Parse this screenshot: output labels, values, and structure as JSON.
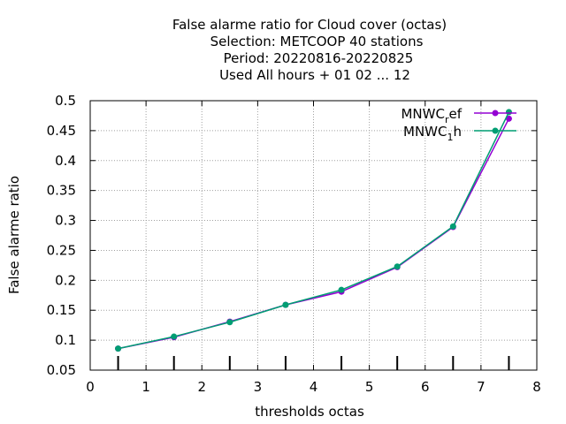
{
  "chart_data": {
    "type": "line",
    "title_lines": [
      "False alarme ratio  for Cloud cover (octas)",
      "Selection: METCOOP     40 stations",
      "Period: 20220816-20220825",
      "Used  All hours + 01 02 ... 12"
    ],
    "xlabel": "thresholds octas",
    "ylabel": "False alarme ratio",
    "xlim": [
      0,
      8
    ],
    "ylim": [
      0.05,
      0.5
    ],
    "xticks": [
      0,
      1,
      2,
      3,
      4,
      5,
      6,
      7,
      8
    ],
    "yticks": [
      0.05,
      0.1,
      0.15,
      0.2,
      0.25,
      0.3,
      0.35,
      0.4,
      0.45,
      0.5
    ],
    "grid": true,
    "legend_position": "top-right",
    "x": [
      0.5,
      1.5,
      2.5,
      3.5,
      4.5,
      5.5,
      6.5,
      7.5
    ],
    "series": [
      {
        "legend_main": "MNWC",
        "legend_sub": "r",
        "legend_tail": "ef",
        "color": "#9400d3",
        "values": [
          0.086,
          0.105,
          0.131,
          0.159,
          0.181,
          0.222,
          0.289,
          0.47
        ]
      },
      {
        "legend_main": "MNWC",
        "legend_sub": "1",
        "legend_tail": "h",
        "color": "#009e73",
        "values": [
          0.086,
          0.106,
          0.13,
          0.159,
          0.184,
          0.223,
          0.29,
          0.481
        ]
      }
    ],
    "bottom_tick_marks_x": [
      0.5,
      1.5,
      2.5,
      3.5,
      4.5,
      5.5,
      6.5,
      7.5
    ]
  }
}
